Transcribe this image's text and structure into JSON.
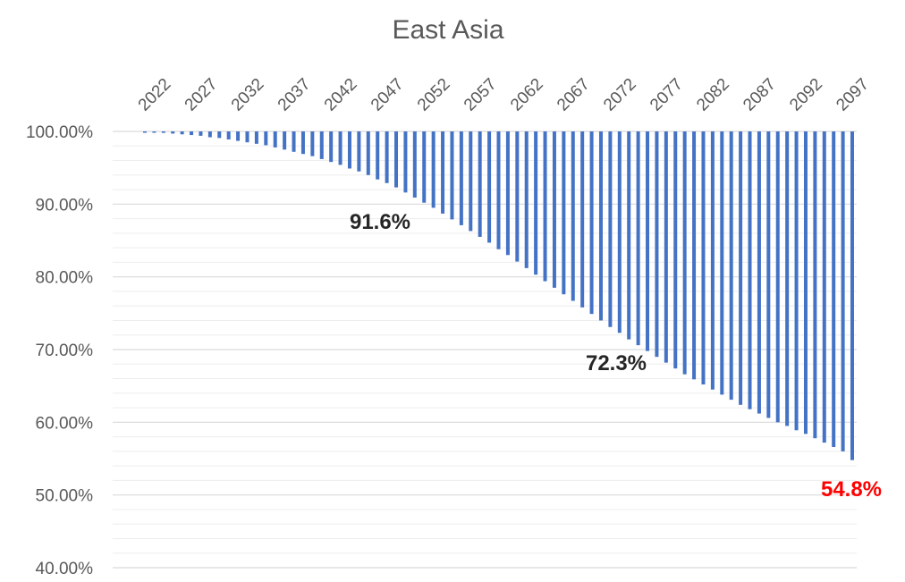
{
  "chart_data": {
    "type": "bar",
    "orientation": "hanging-from-top",
    "title": "East Asia",
    "xlabel": "",
    "ylabel": "",
    "ylim": [
      0.4,
      1.0
    ],
    "y_tick_labels": [
      "100.00%",
      "90.00%",
      "80.00%",
      "70.00%",
      "60.00%",
      "50.00%",
      "40.00%"
    ],
    "y_ticks": [
      1.0,
      0.9,
      0.8,
      0.7,
      0.6,
      0.5,
      0.4
    ],
    "x_axis_position": "top",
    "x_tick_labels": [
      "2022",
      "2027",
      "2032",
      "2037",
      "2042",
      "2047",
      "2052",
      "2057",
      "2062",
      "2067",
      "2072",
      "2077",
      "2082",
      "2087",
      "2092",
      "2097"
    ],
    "categories": [
      2022,
      2023,
      2024,
      2025,
      2026,
      2027,
      2028,
      2029,
      2030,
      2031,
      2032,
      2033,
      2034,
      2035,
      2036,
      2037,
      2038,
      2039,
      2040,
      2041,
      2042,
      2043,
      2044,
      2045,
      2046,
      2047,
      2048,
      2049,
      2050,
      2051,
      2052,
      2053,
      2054,
      2055,
      2056,
      2057,
      2058,
      2059,
      2060,
      2061,
      2062,
      2063,
      2064,
      2065,
      2066,
      2067,
      2068,
      2069,
      2070,
      2071,
      2072,
      2073,
      2074,
      2075,
      2076,
      2077,
      2078,
      2079,
      2080,
      2081,
      2082,
      2083,
      2084,
      2085,
      2086,
      2087,
      2088,
      2089,
      2090,
      2091,
      2092,
      2093,
      2094,
      2095,
      2096,
      2097,
      2098
    ],
    "values": [
      1.0,
      0.999,
      0.998,
      0.997,
      0.996,
      0.995,
      0.994,
      0.992,
      0.991,
      0.989,
      0.987,
      0.985,
      0.983,
      0.981,
      0.978,
      0.975,
      0.972,
      0.969,
      0.966,
      0.962,
      0.958,
      0.954,
      0.949,
      0.945,
      0.94,
      0.934,
      0.929,
      0.923,
      0.916,
      0.909,
      0.902,
      0.895,
      0.887,
      0.879,
      0.871,
      0.863,
      0.855,
      0.847,
      0.838,
      0.83,
      0.821,
      0.812,
      0.803,
      0.794,
      0.785,
      0.776,
      0.767,
      0.758,
      0.749,
      0.74,
      0.731,
      0.723,
      0.714,
      0.706,
      0.698,
      0.69,
      0.682,
      0.674,
      0.666,
      0.659,
      0.652,
      0.645,
      0.638,
      0.631,
      0.624,
      0.618,
      0.612,
      0.606,
      0.6,
      0.595,
      0.589,
      0.584,
      0.578,
      0.572,
      0.566,
      0.56,
      0.548
    ],
    "grid": true,
    "legend": "none",
    "bar_color": "#4472C4",
    "annotations": [
      {
        "text": "91.6%",
        "x": 2050,
        "color": "#262626"
      },
      {
        "text": "72.3%",
        "x": 2073,
        "color": "#262626"
      },
      {
        "text": "54.8%",
        "x": 2098,
        "color": "#FF0000"
      }
    ]
  }
}
